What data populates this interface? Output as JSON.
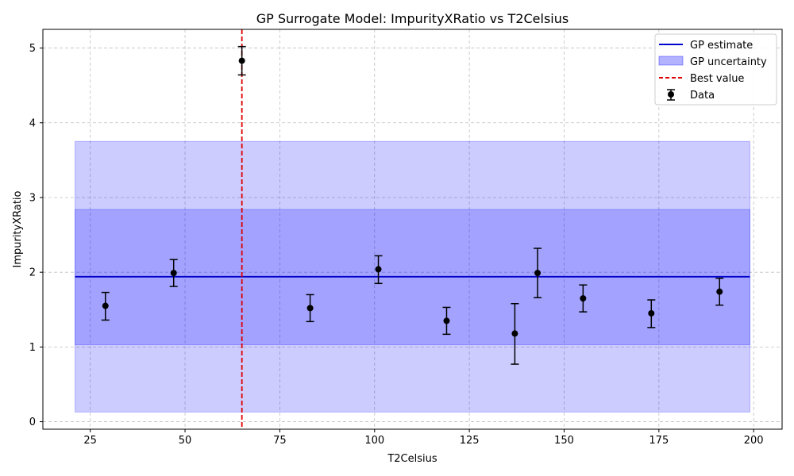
{
  "chart_data": {
    "type": "scatter",
    "title": "GP Surrogate Model: ImpurityXRatio vs T2Celsius",
    "xlabel": "T2Celsius",
    "ylabel": "ImpurityXRatio",
    "xlim": [
      12.5,
      207.5
    ],
    "ylim": [
      -0.1,
      5.25
    ],
    "xticks": [
      25,
      50,
      75,
      100,
      125,
      150,
      175,
      200
    ],
    "yticks": [
      0,
      1,
      2,
      3,
      4,
      5
    ],
    "grid": true,
    "legend_position": "top-right",
    "legend": {
      "gp_estimate": "GP estimate",
      "gp_uncertainty": "GP uncertainty",
      "best_value": "Best value",
      "data": "Data"
    },
    "gp_estimate": {
      "x_range": [
        21,
        199
      ],
      "y": 1.94
    },
    "gp_uncertainty": {
      "inner": {
        "x_range": [
          21,
          199
        ],
        "y_range": [
          1.03,
          2.84
        ]
      },
      "outer": {
        "x_range": [
          21,
          199
        ],
        "y_range": [
          0.13,
          3.75
        ]
      }
    },
    "best_value_x": 65,
    "data": {
      "x": [
        29,
        47,
        65,
        83,
        101,
        119,
        137,
        143,
        155,
        173,
        191
      ],
      "y": [
        1.55,
        1.99,
        4.83,
        1.52,
        2.04,
        1.35,
        1.18,
        1.99,
        1.65,
        1.45,
        1.74
      ],
      "y_lower": [
        1.36,
        1.81,
        4.64,
        1.34,
        1.85,
        1.17,
        0.77,
        1.66,
        1.47,
        1.26,
        1.56
      ],
      "y_upper": [
        1.73,
        2.17,
        5.02,
        1.7,
        2.22,
        1.53,
        1.58,
        2.32,
        1.83,
        1.63,
        1.92
      ]
    },
    "colors": {
      "gp_line": "#0000cc",
      "uncertainty_fill": "#0000ff",
      "best_line": "#e00000",
      "points": "#000000",
      "grid": "#b0b0b0"
    }
  }
}
